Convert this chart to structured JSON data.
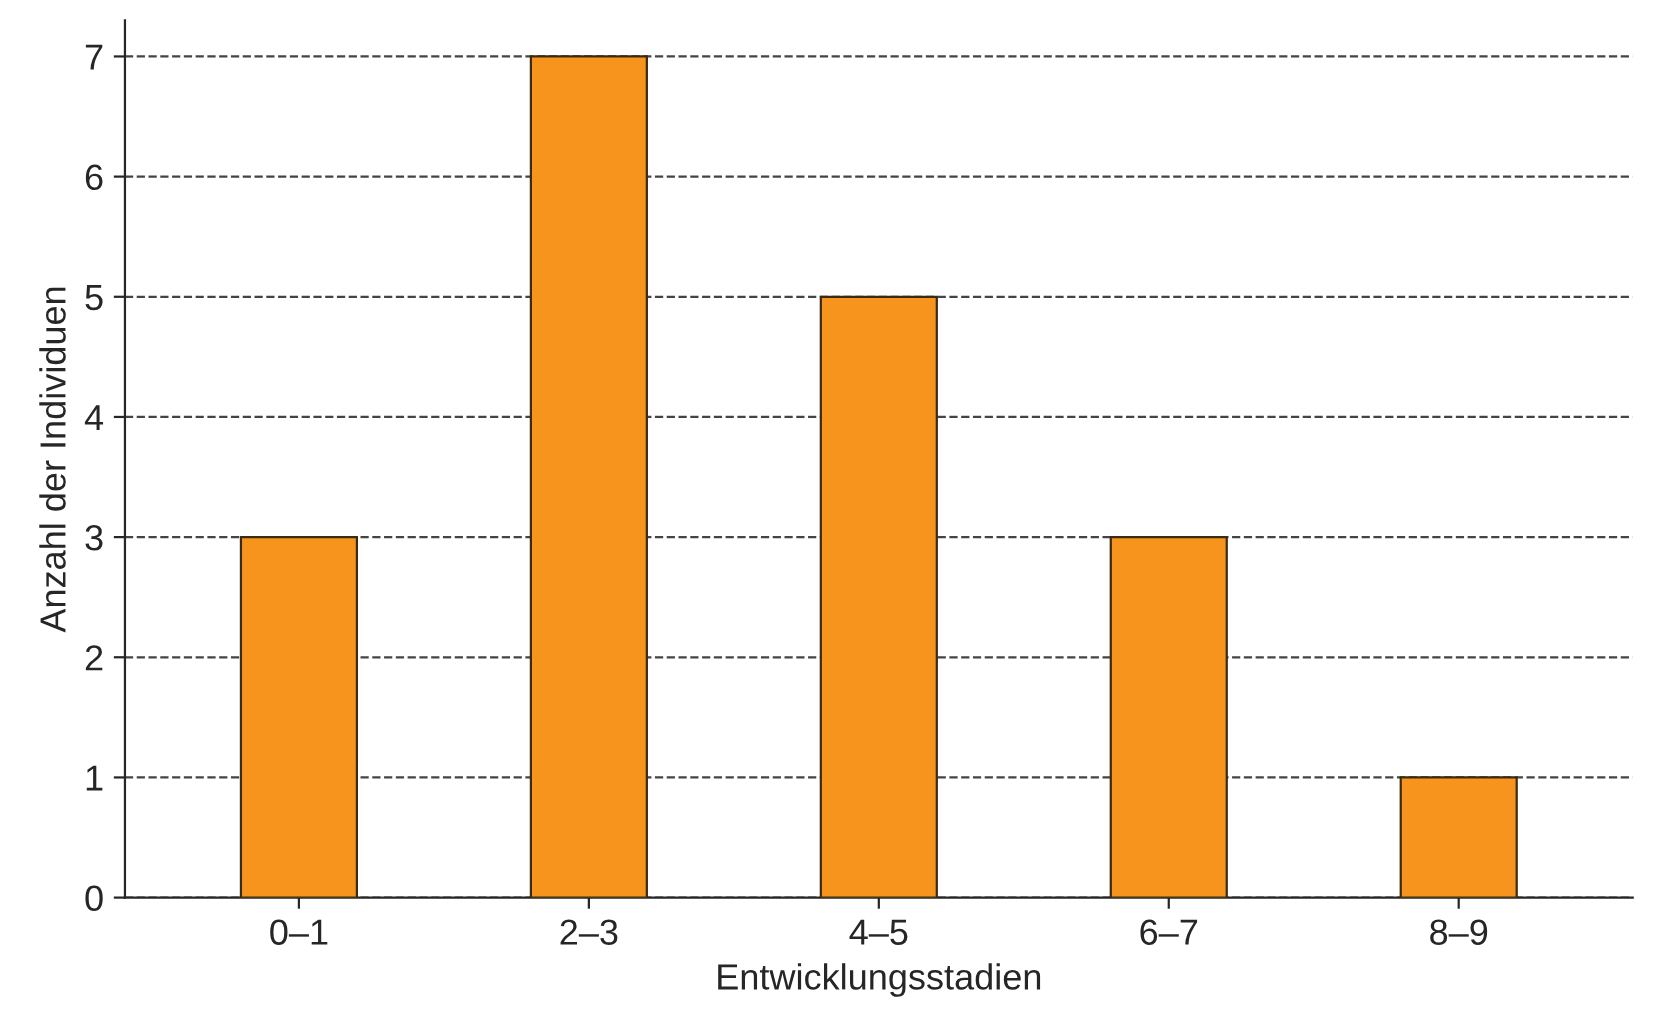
{
  "chart_data": {
    "type": "bar",
    "xlabel": "Entwicklungsstadien",
    "ylabel": "Anzahl der Individuen",
    "categories": [
      "0–1",
      "2–3",
      "4–5",
      "6–7",
      "8–9"
    ],
    "values": [
      3,
      7,
      5,
      3,
      1
    ],
    "color": "#f7941d",
    "ylim": [
      0,
      7.3
    ],
    "yticks": [
      0,
      1,
      2,
      3,
      4,
      5,
      6,
      7
    ],
    "grid": "y",
    "line_style": "dashed"
  }
}
